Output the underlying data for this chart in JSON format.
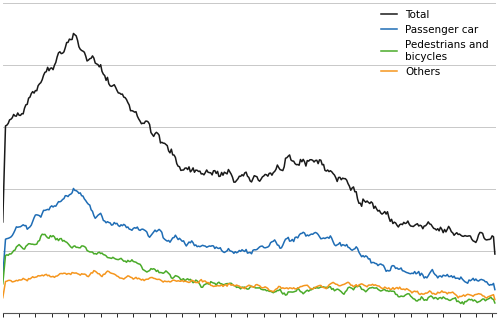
{
  "line_colors": {
    "total": "#1a1a1a",
    "passenger_car": "#1f6db5",
    "pedestrians": "#4aab2a",
    "others": "#f5961e"
  },
  "legend_labels": {
    "total": "Total",
    "passenger_car": "Passenger car",
    "pedestrians": "Pedestrians and\nbicycles",
    "others": "Others"
  },
  "ylim": [
    0,
    1000
  ],
  "background_color": "#ffffff",
  "grid_color": "#c8c8c8",
  "n_gridlines": 6,
  "line_width": 1.1
}
